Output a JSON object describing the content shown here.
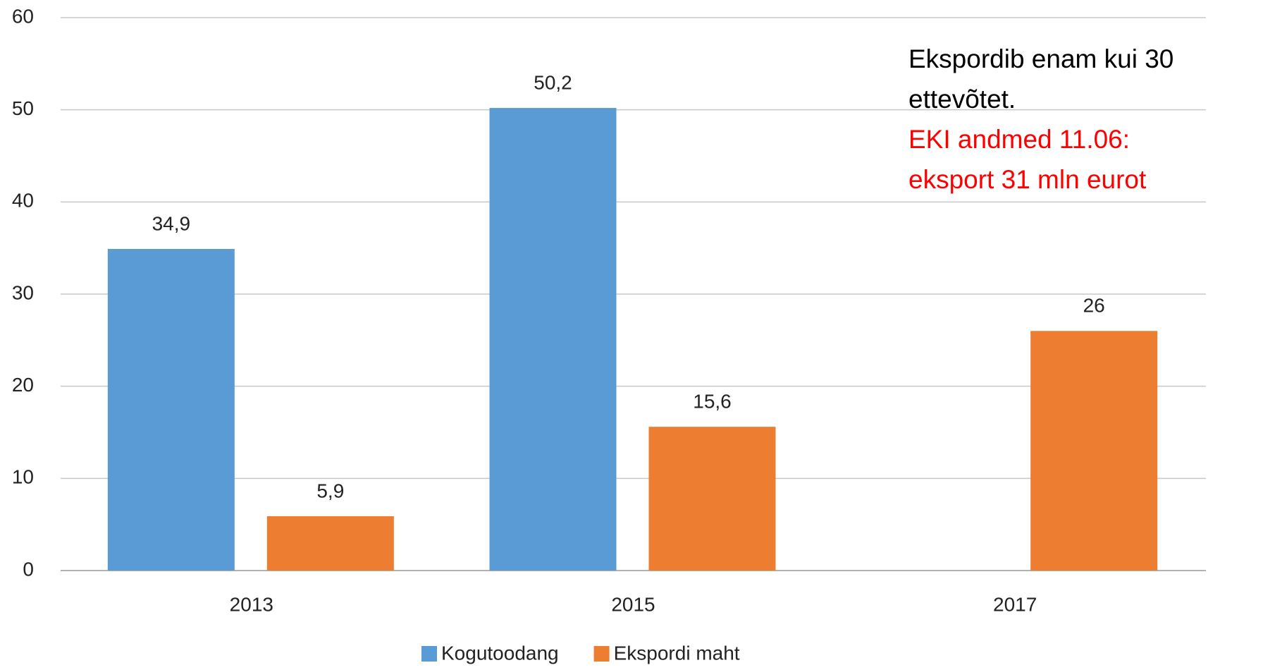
{
  "chart_data": {
    "type": "bar",
    "categories": [
      "2013",
      "2015",
      "2017"
    ],
    "series": [
      {
        "name": "Kogutoodang",
        "color": "#5b9bd5",
        "values": [
          34.9,
          50.2,
          null
        ],
        "value_labels": [
          "34,9",
          "50,2",
          null
        ]
      },
      {
        "name": "Ekspordi maht",
        "color": "#ed7d31",
        "values": [
          5.9,
          15.6,
          26
        ],
        "value_labels": [
          "5,9",
          "15,6",
          "26"
        ]
      }
    ],
    "ylim": [
      0,
      60
    ],
    "yticks": [
      0,
      10,
      20,
      30,
      40,
      50,
      60
    ],
    "grid": true,
    "legend": "bottom",
    "annotations": [
      {
        "lines": [
          "Ekspordib enam kui 30",
          "ettevõtet."
        ],
        "color": "#000000"
      },
      {
        "lines": [
          "EKI andmed 11.06:",
          "eksport 31 mln eurot"
        ],
        "color": "#ff0000"
      }
    ]
  }
}
